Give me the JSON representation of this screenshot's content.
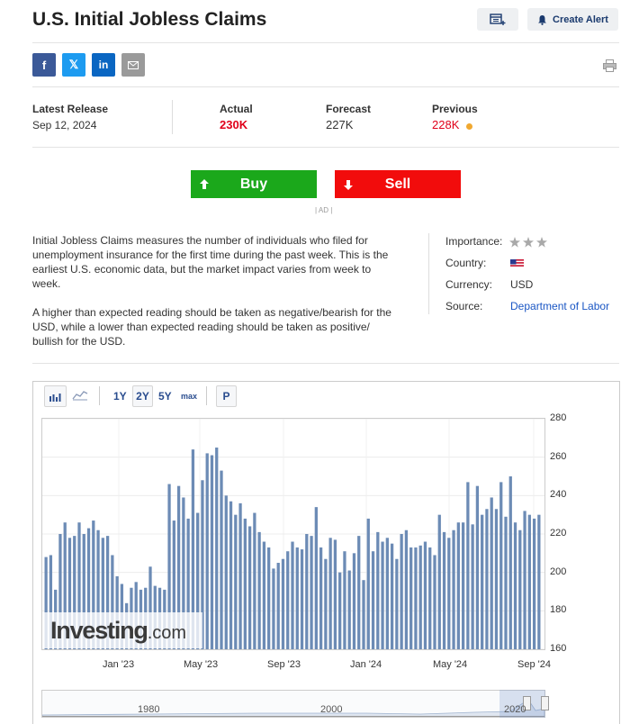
{
  "header": {
    "title": "U.S. Initial Jobless Claims",
    "create_alert": "Create Alert"
  },
  "release": {
    "latest_label": "Latest Release",
    "latest_date": "Sep 12, 2024",
    "actual_label": "Actual",
    "actual_value": "230K",
    "forecast_label": "Forecast",
    "forecast_value": "227K",
    "previous_label": "Previous",
    "previous_value": "228K",
    "colors": {
      "actual": "#e0001a",
      "previous": "#e0001a",
      "dot": "#f0a830"
    }
  },
  "trade": {
    "buy": "Buy",
    "sell": "Sell",
    "ad": "| AD |",
    "buy_color": "#1ba81b",
    "sell_color": "#f20c0c"
  },
  "description": {
    "p1": "Initial Jobless Claims measures the number of individuals who filed for unemployment insurance for the first time during the past week. This is the earliest U.S. economic data, but the market impact varies from week to week.",
    "p2": "A higher than expected reading should be taken as negative/bearish for the USD, while a lower than expected reading should be taken as positive/ bullish for the USD."
  },
  "info": {
    "importance_label": "Importance:",
    "importance_stars": 3,
    "country_label": "Country:",
    "currency_label": "Currency:",
    "currency_value": "USD",
    "source_label": "Source:",
    "source_value": "Department of Labor"
  },
  "chart_controls": {
    "ranges": [
      "1Y",
      "2Y",
      "5Y",
      "max"
    ],
    "selected": "2Y",
    "p_label": "P"
  },
  "chart_data": {
    "type": "bar",
    "unit": "K",
    "ylim": [
      160,
      280
    ],
    "yticks": [
      "280",
      "260",
      "240",
      "220",
      "200",
      "180",
      "160"
    ],
    "xticks": [
      "Jan '23",
      "May '23",
      "Sep '23",
      "Jan '24",
      "May '24",
      "Sep '24"
    ],
    "values": [
      208,
      209,
      191,
      220,
      226,
      218,
      219,
      226,
      220,
      223,
      227,
      222,
      218,
      219,
      209,
      198,
      194,
      184,
      192,
      195,
      191,
      192,
      203,
      193,
      192,
      191,
      246,
      227,
      245,
      239,
      228,
      264,
      231,
      248,
      262,
      261,
      265,
      253,
      240,
      237,
      230,
      236,
      228,
      224,
      231,
      221,
      216,
      213,
      202,
      205,
      207,
      211,
      216,
      213,
      212,
      220,
      219,
      234,
      213,
      207,
      218,
      217,
      200,
      211,
      201,
      210,
      219,
      196,
      228,
      211,
      221,
      216,
      218,
      215,
      207,
      220,
      222,
      213,
      213,
      214,
      216,
      213,
      209,
      230,
      221,
      218,
      222,
      226,
      226,
      247,
      225,
      245,
      230,
      233,
      239,
      233,
      247,
      229,
      250,
      226,
      222,
      232,
      230,
      228,
      230
    ]
  },
  "watermark": "Investing.com",
  "navigator": {
    "labels": [
      "1980",
      "2000",
      "2020"
    ]
  }
}
